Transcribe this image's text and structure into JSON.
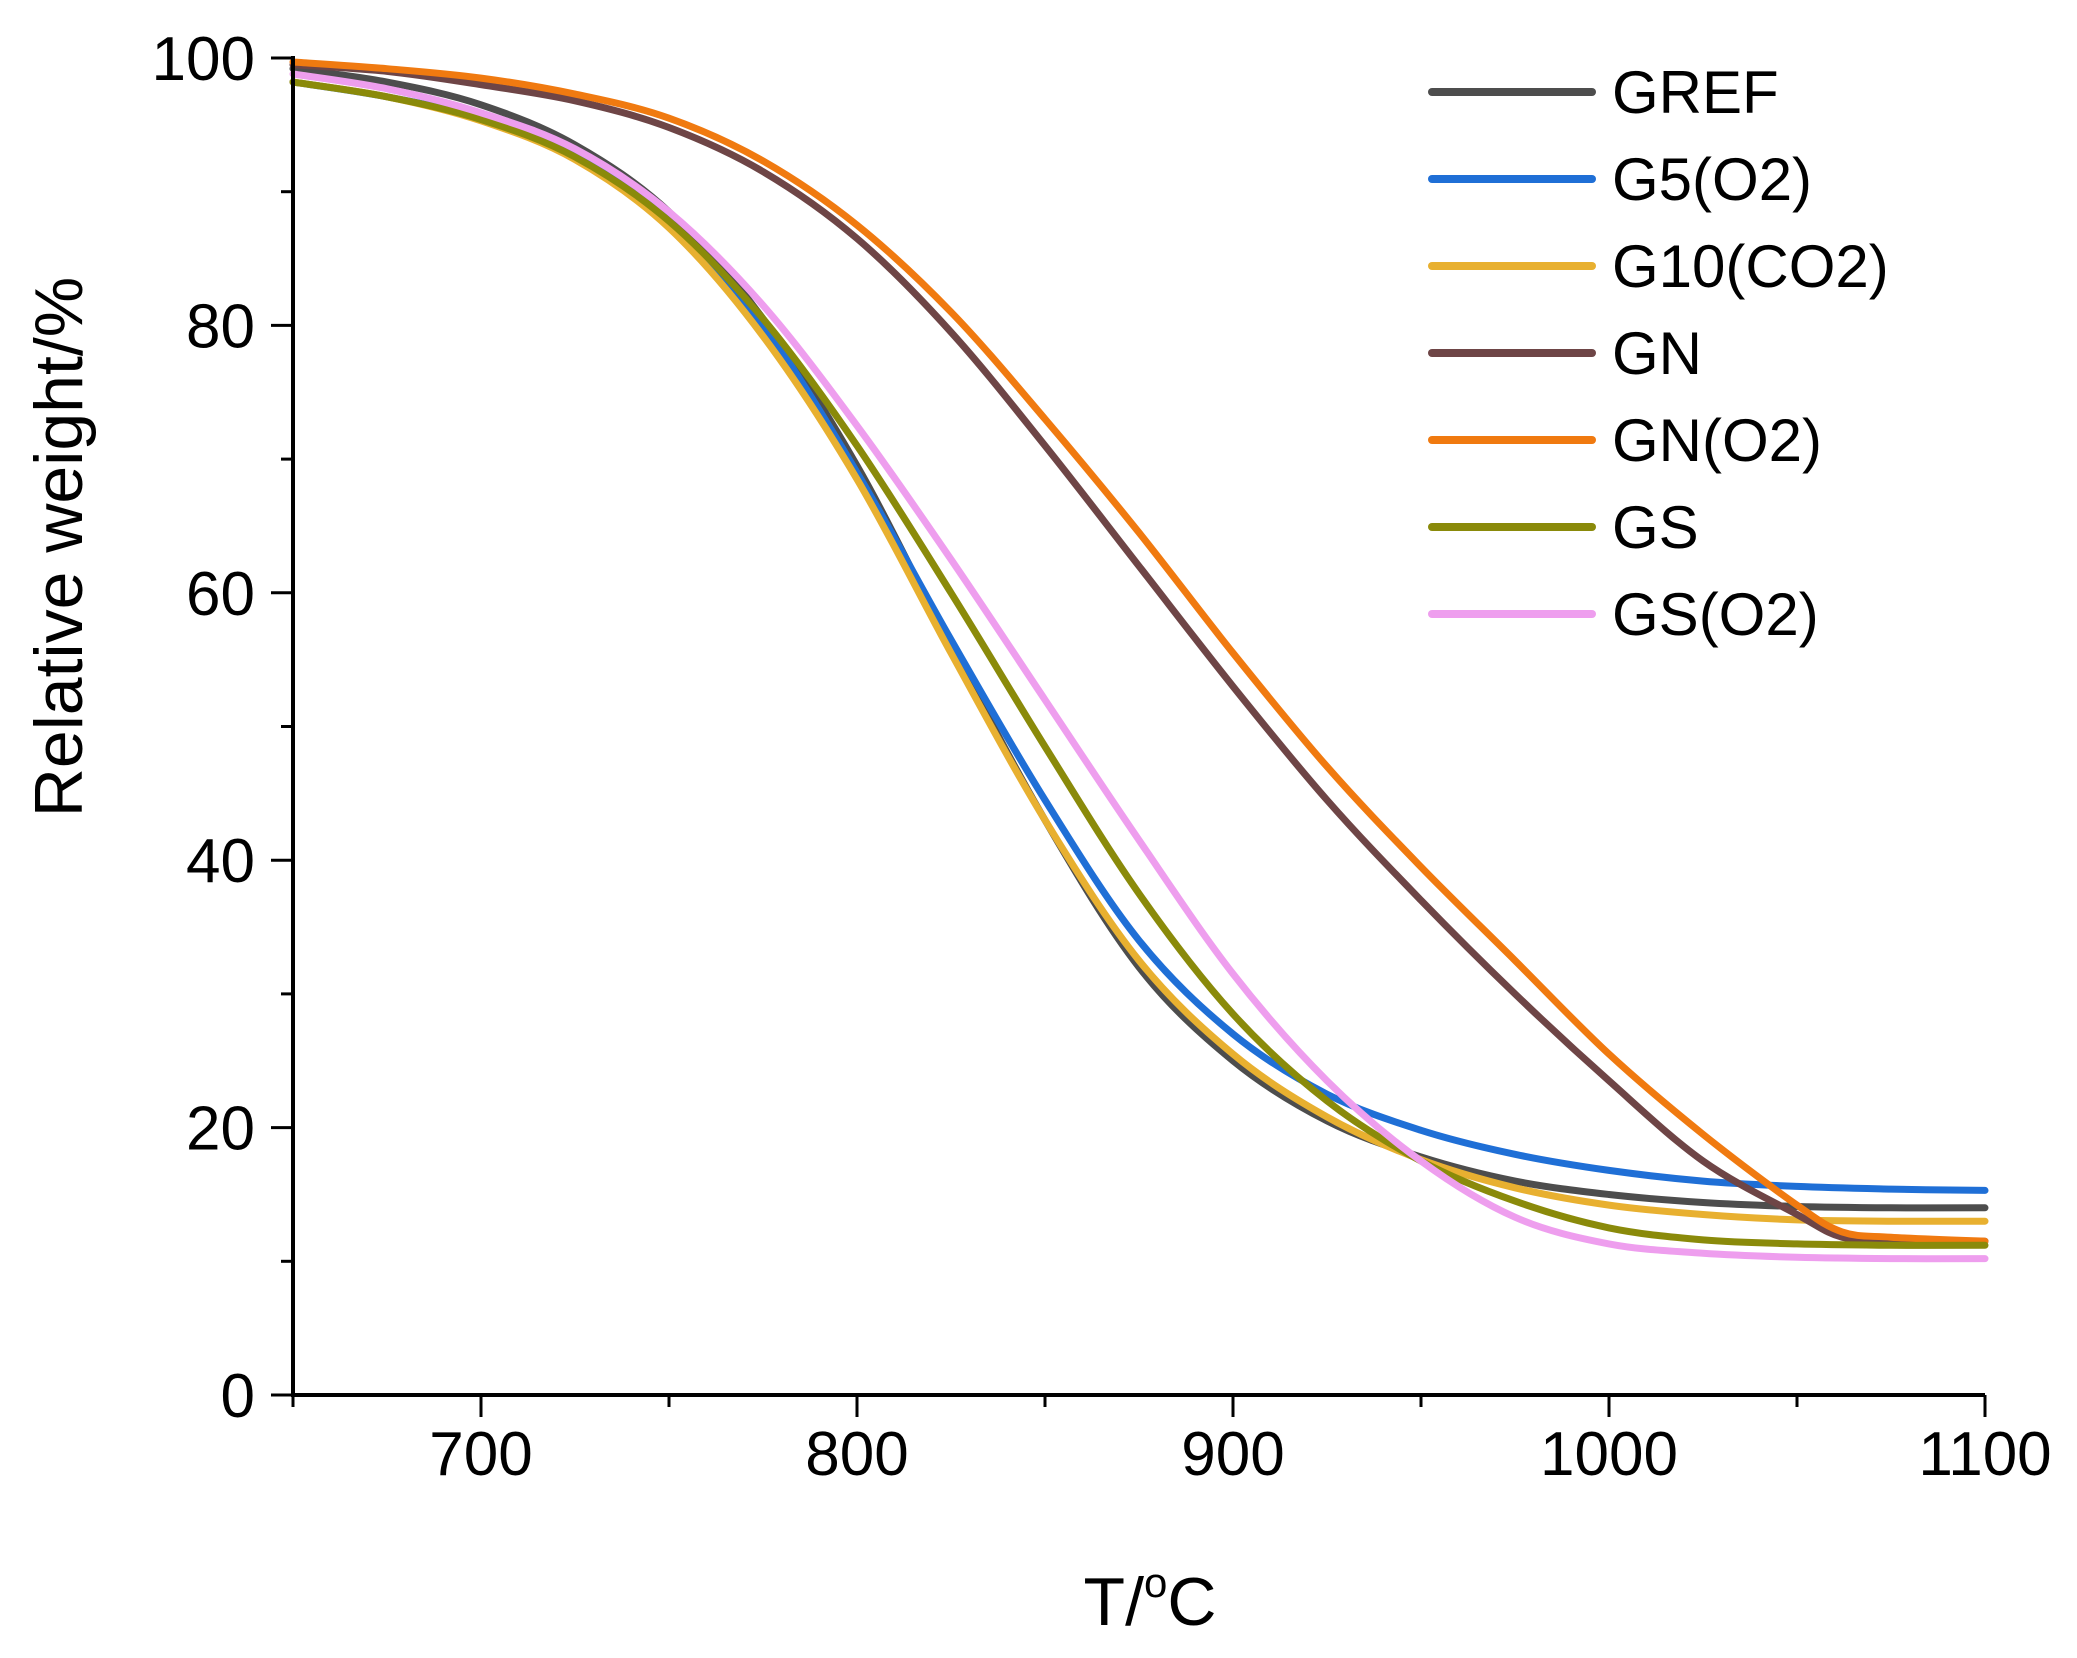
{
  "chart_data": {
    "type": "line",
    "title": "",
    "xlabel": "T/",
    "xlabel_superscript": "o",
    "xlabel_suffix": "C",
    "ylabel": "Relative weight/%",
    "xlim": [
      650,
      1100
    ],
    "ylim": [
      0,
      100
    ],
    "xticks": [
      700,
      800,
      900,
      1000,
      1100
    ],
    "yticks": [
      0,
      20,
      40,
      60,
      80,
      100
    ],
    "x_minor_step": 50,
    "y_minor_step": 10,
    "grid": false,
    "legend_position": "top-right",
    "series": [
      {
        "name": "GREF",
        "color": "#4d4d4d",
        "x": [
          650,
          675,
          700,
          725,
          750,
          775,
          800,
          825,
          850,
          875,
          900,
          925,
          950,
          975,
          1000,
          1025,
          1050,
          1075,
          1100
        ],
        "y": [
          99.2,
          98.2,
          96.5,
          93.5,
          88.5,
          80.5,
          69.5,
          56,
          43,
          32,
          25,
          20.5,
          17.8,
          16,
          15,
          14.4,
          14.1,
          14,
          14
        ]
      },
      {
        "name": "G5(O2)",
        "color": "#1f6fd6",
        "x": [
          650,
          675,
          700,
          725,
          750,
          775,
          800,
          825,
          850,
          875,
          900,
          925,
          950,
          975,
          1000,
          1025,
          1050,
          1075,
          1100
        ],
        "y": [
          98.2,
          97.1,
          95.5,
          92.8,
          87.8,
          80,
          69,
          56.5,
          44.5,
          34,
          27,
          22.5,
          19.8,
          18,
          16.8,
          16,
          15.6,
          15.4,
          15.3
        ]
      },
      {
        "name": "G10(CO2)",
        "color": "#e8b030",
        "x": [
          650,
          675,
          700,
          725,
          750,
          775,
          800,
          825,
          850,
          875,
          900,
          925,
          950,
          975,
          1000,
          1025,
          1050,
          1075,
          1100
        ],
        "y": [
          98.2,
          97.1,
          95.3,
          92.4,
          87.3,
          79.2,
          68.5,
          55.5,
          43,
          32.5,
          25.5,
          20.8,
          17.6,
          15.5,
          14.2,
          13.5,
          13.1,
          13,
          13
        ]
      },
      {
        "name": "GN",
        "color": "#6e4546",
        "x": [
          650,
          675,
          700,
          725,
          750,
          775,
          800,
          825,
          850,
          875,
          900,
          925,
          950,
          975,
          1000,
          1025,
          1050,
          1062,
          1075,
          1100
        ],
        "y": [
          99.5,
          99,
          98,
          96.8,
          94.8,
          91.5,
          86.5,
          79.5,
          71,
          62,
          53,
          44.5,
          37,
          30,
          23.5,
          17.5,
          13.5,
          11.8,
          11.6,
          11.5
        ]
      },
      {
        "name": "GN(O2)",
        "color": "#f07a10",
        "x": [
          650,
          675,
          700,
          725,
          750,
          775,
          800,
          825,
          850,
          875,
          900,
          925,
          950,
          975,
          1000,
          1025,
          1050,
          1062,
          1075,
          1100
        ],
        "y": [
          99.7,
          99.2,
          98.5,
          97.3,
          95.5,
          92.3,
          87.5,
          81,
          73,
          64.5,
          55.5,
          47,
          39.5,
          32.5,
          25.5,
          19.5,
          14.2,
          12.2,
          11.8,
          11.5
        ]
      },
      {
        "name": "GS",
        "color": "#8a8a0a",
        "x": [
          650,
          675,
          700,
          725,
          750,
          775,
          800,
          825,
          850,
          875,
          900,
          925,
          950,
          975,
          1000,
          1025,
          1050,
          1075,
          1100
        ],
        "y": [
          98.2,
          97.1,
          95.4,
          92.6,
          87.8,
          80.5,
          71,
          60,
          48.5,
          37.5,
          28.5,
          22,
          17.5,
          14.5,
          12.5,
          11.6,
          11.3,
          11.2,
          11.2
        ]
      },
      {
        "name": "GS(O2)",
        "color": "#ee9eee",
        "x": [
          650,
          675,
          700,
          725,
          750,
          775,
          800,
          825,
          850,
          875,
          900,
          925,
          950,
          975,
          1000,
          1025,
          1050,
          1075,
          1100
        ],
        "y": [
          98.8,
          97.7,
          95.9,
          93.2,
          88.5,
          81.5,
          72.5,
          62.5,
          52,
          41.5,
          31.5,
          23.5,
          17.5,
          13.3,
          11.3,
          10.6,
          10.3,
          10.2,
          10.2
        ]
      }
    ]
  }
}
